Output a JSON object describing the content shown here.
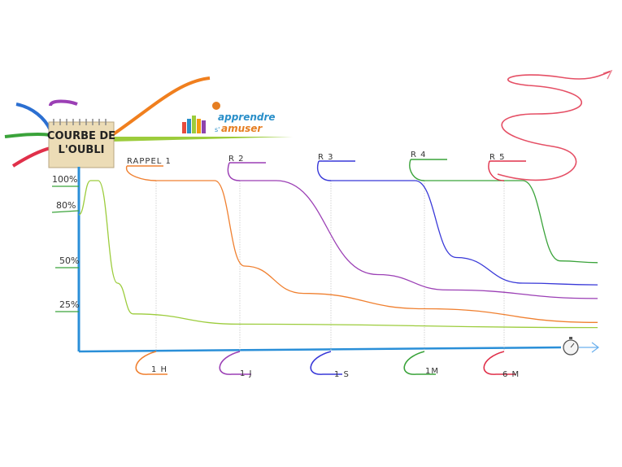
{
  "title_box": {
    "line1": "COURBE DE",
    "line2": "L'OUBLI"
  },
  "logo": {
    "word1": "apprendre",
    "prefix": "s'",
    "word2": "amuser"
  },
  "chart_data": {
    "type": "line",
    "y_ticks": [
      "100%",
      "80%",
      "50%",
      "25%"
    ],
    "x_ticks": [
      "1 H",
      "1 J",
      "1 S",
      "1M",
      "6 M"
    ],
    "review_labels": [
      "RAPPEL 1",
      "R 2",
      "R 3",
      "R 4",
      "R 5"
    ],
    "series": [
      {
        "color": "#9ccc3c",
        "points": [
          [
            0,
            80
          ],
          [
            0.15,
            100
          ],
          [
            0.25,
            100
          ],
          [
            0.5,
            40
          ],
          [
            0.7,
            22
          ],
          [
            2,
            16
          ],
          [
            6,
            14
          ]
        ]
      },
      {
        "color": "#f08030",
        "points": [
          [
            1,
            100
          ],
          [
            1.7,
            100
          ],
          [
            2.05,
            50
          ],
          [
            2.7,
            34
          ],
          [
            4,
            25
          ],
          [
            6,
            17
          ]
        ]
      },
      {
        "color": "#9b3fb5",
        "points": [
          [
            2,
            100
          ],
          [
            2.4,
            100
          ],
          [
            3.5,
            45
          ],
          [
            4.3,
            36
          ],
          [
            6,
            31
          ]
        ]
      },
      {
        "color": "#3838d8",
        "points": [
          [
            3,
            100
          ],
          [
            3.9,
            100
          ],
          [
            4.4,
            55
          ],
          [
            5.2,
            40
          ],
          [
            6,
            39
          ]
        ]
      },
      {
        "color": "#3aa33a",
        "points": [
          [
            4,
            100
          ],
          [
            5.2,
            100
          ],
          [
            5.6,
            53
          ],
          [
            6,
            52
          ]
        ]
      }
    ],
    "colors": {
      "axis": "#2a8fd8",
      "recall": [
        "#f08030",
        "#9b3fb5",
        "#3838d8",
        "#3aa33a",
        "#e0304a"
      ]
    }
  }
}
